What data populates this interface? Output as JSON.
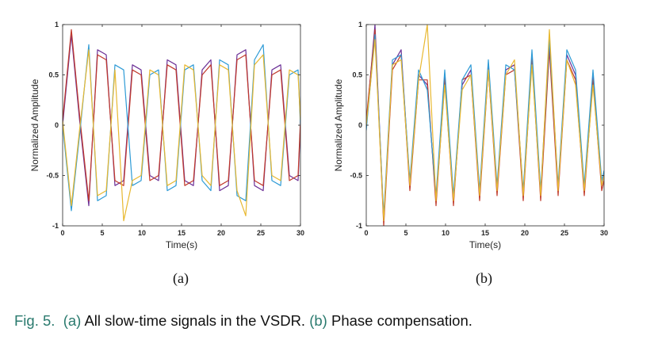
{
  "chart_data": [
    {
      "type": "line",
      "panel_label": "(a)",
      "title": "",
      "xlabel": "Time(s)",
      "ylabel": "Normalized Amplitude",
      "xlim": [
        0,
        30
      ],
      "ylim": [
        -1,
        1
      ],
      "xticks": [
        "0",
        "5",
        "10",
        "15",
        "20",
        "25",
        "30"
      ],
      "yticks": [
        "-1",
        "-0.5",
        "0",
        "0.5",
        "1"
      ],
      "grid": false,
      "legend": "none",
      "series": [
        {
          "color": "#6b2f96",
          "x": [
            0,
            1.1,
            2.2,
            3.3,
            4.4,
            5.5,
            6.6,
            7.7,
            8.8,
            9.9,
            11.0,
            12.1,
            13.2,
            14.3,
            15.4,
            16.5,
            17.6,
            18.7,
            19.8,
            20.9,
            22.0,
            23.1,
            24.2,
            25.3,
            26.4,
            27.5,
            28.6,
            29.7,
            30
          ],
          "y": [
            0.0,
            0.9,
            0.0,
            -0.8,
            0.75,
            0.7,
            -0.6,
            -0.55,
            0.6,
            0.55,
            -0.5,
            -0.55,
            0.65,
            0.6,
            -0.55,
            -0.6,
            0.55,
            0.65,
            -0.65,
            -0.6,
            0.7,
            0.75,
            -0.6,
            -0.65,
            0.55,
            0.6,
            -0.5,
            -0.55,
            0.0
          ]
        },
        {
          "color": "#c0392b",
          "x": [
            0,
            1.1,
            2.2,
            3.3,
            4.4,
            5.5,
            6.6,
            7.7,
            8.8,
            9.9,
            11.0,
            12.1,
            13.2,
            14.3,
            15.4,
            16.5,
            17.6,
            18.7,
            19.8,
            20.9,
            22.0,
            23.1,
            24.2,
            25.3,
            26.4,
            27.5,
            28.6,
            29.7,
            30
          ],
          "y": [
            0.05,
            0.95,
            0.05,
            -0.75,
            0.7,
            0.65,
            -0.55,
            -0.6,
            0.55,
            0.5,
            -0.55,
            -0.5,
            0.6,
            0.55,
            -0.6,
            -0.55,
            0.5,
            0.6,
            -0.6,
            -0.55,
            0.65,
            0.7,
            -0.55,
            -0.6,
            0.5,
            0.55,
            -0.55,
            -0.5,
            0.05
          ]
        },
        {
          "color": "#2e9bd6",
          "x": [
            0,
            1.1,
            2.2,
            3.3,
            4.4,
            5.5,
            6.6,
            7.7,
            8.8,
            9.9,
            11.0,
            12.1,
            13.2,
            14.3,
            15.4,
            16.5,
            17.6,
            18.7,
            19.8,
            20.9,
            22.0,
            23.1,
            24.2,
            25.3,
            26.4,
            27.5,
            28.6,
            29.7,
            30
          ],
          "y": [
            0.0,
            -0.85,
            -0.05,
            0.8,
            -0.75,
            -0.7,
            0.6,
            0.55,
            -0.6,
            -0.55,
            0.5,
            0.55,
            -0.65,
            -0.6,
            0.55,
            0.6,
            -0.55,
            -0.65,
            0.65,
            0.6,
            -0.7,
            -0.75,
            0.65,
            0.8,
            -0.55,
            -0.6,
            0.5,
            0.55,
            0.0
          ]
        },
        {
          "color": "#e8b830",
          "x": [
            0,
            1.1,
            2.2,
            3.3,
            4.4,
            5.5,
            6.6,
            7.7,
            8.8,
            9.9,
            11.0,
            12.1,
            13.2,
            14.3,
            15.4,
            16.5,
            17.6,
            18.7,
            19.8,
            20.9,
            22.0,
            23.1,
            24.2,
            25.3,
            26.4,
            27.5,
            28.6,
            29.7,
            30
          ],
          "y": [
            0.05,
            -0.8,
            0.0,
            0.75,
            -0.7,
            -0.65,
            0.55,
            -0.95,
            -0.55,
            -0.5,
            0.55,
            0.5,
            -0.6,
            -0.55,
            0.6,
            0.55,
            -0.5,
            -0.6,
            0.6,
            0.55,
            -0.65,
            -0.9,
            0.6,
            0.7,
            -0.5,
            -0.55,
            0.55,
            0.5,
            0.05
          ]
        }
      ]
    },
    {
      "type": "line",
      "panel_label": "(b)",
      "title": "",
      "xlabel": "Time(s)",
      "ylabel": "Normalized Amplitude",
      "xlim": [
        0,
        30
      ],
      "ylim": [
        -1,
        1
      ],
      "xticks": [
        "0",
        "5",
        "10",
        "15",
        "20",
        "25",
        "30"
      ],
      "yticks": [
        "-1",
        "-0.5",
        "0",
        "0.5",
        "1"
      ],
      "grid": false,
      "legend": "none",
      "series": [
        {
          "color": "#6b2f96",
          "x": [
            0,
            1.1,
            2.2,
            3.3,
            4.4,
            5.5,
            6.6,
            7.7,
            8.8,
            9.9,
            11.0,
            12.1,
            13.2,
            14.3,
            15.4,
            16.5,
            17.6,
            18.7,
            19.8,
            20.9,
            22.0,
            23.1,
            24.2,
            25.3,
            26.4,
            27.5,
            28.6,
            29.7,
            30
          ],
          "y": [
            0.0,
            1.0,
            -0.95,
            0.6,
            0.75,
            -0.6,
            0.5,
            0.4,
            -0.75,
            0.5,
            -0.75,
            0.4,
            0.55,
            -0.7,
            0.6,
            -0.65,
            0.55,
            0.6,
            -0.7,
            0.7,
            -0.7,
            0.8,
            -0.65,
            0.7,
            0.5,
            -0.65,
            0.5,
            -0.6,
            -0.5
          ]
        },
        {
          "color": "#c0392b",
          "x": [
            0,
            1.1,
            2.2,
            3.3,
            4.4,
            5.5,
            6.6,
            7.7,
            8.8,
            9.9,
            11.0,
            12.1,
            13.2,
            14.3,
            15.4,
            16.5,
            17.6,
            18.7,
            19.8,
            20.9,
            22.0,
            23.1,
            24.2,
            25.3,
            26.4,
            27.5,
            28.6,
            29.7,
            30
          ],
          "y": [
            0.05,
            0.95,
            -1.0,
            0.55,
            0.7,
            -0.65,
            0.45,
            0.45,
            -0.8,
            0.45,
            -0.8,
            0.45,
            0.5,
            -0.75,
            0.55,
            -0.7,
            0.5,
            0.55,
            -0.75,
            0.65,
            -0.75,
            0.75,
            -0.7,
            0.65,
            0.45,
            -0.7,
            0.45,
            -0.65,
            -0.55
          ]
        },
        {
          "color": "#2e9bd6",
          "x": [
            0,
            1.1,
            2.2,
            3.3,
            4.4,
            5.5,
            6.6,
            7.7,
            8.8,
            9.9,
            11.0,
            12.1,
            13.2,
            14.3,
            15.4,
            16.5,
            17.6,
            18.7,
            19.8,
            20.9,
            22.0,
            23.1,
            24.2,
            25.3,
            26.4,
            27.5,
            28.6,
            29.7,
            30
          ],
          "y": [
            -0.05,
            0.9,
            -0.9,
            0.65,
            0.7,
            -0.55,
            0.55,
            0.35,
            -0.7,
            0.55,
            -0.7,
            0.45,
            0.6,
            -0.65,
            0.65,
            -0.6,
            0.6,
            0.55,
            -0.65,
            0.75,
            -0.65,
            0.85,
            -0.6,
            0.75,
            0.55,
            -0.6,
            0.55,
            -0.55,
            -0.45
          ]
        },
        {
          "color": "#e8b830",
          "x": [
            0,
            1.1,
            2.2,
            3.3,
            4.4,
            5.5,
            6.6,
            7.7,
            8.8,
            9.9,
            11.0,
            12.1,
            13.2,
            14.3,
            15.4,
            16.5,
            17.6,
            18.7,
            19.8,
            20.9,
            22.0,
            23.1,
            24.2,
            25.3,
            26.4,
            27.5,
            28.6,
            29.7,
            30
          ],
          "y": [
            0.0,
            0.85,
            -0.95,
            0.6,
            0.65,
            -0.6,
            0.45,
            1.0,
            -0.75,
            0.4,
            -0.75,
            0.35,
            0.5,
            -0.7,
            0.55,
            -0.65,
            0.5,
            0.65,
            -0.7,
            0.6,
            -0.7,
            0.95,
            -0.65,
            0.65,
            0.4,
            -0.65,
            0.4,
            -0.6,
            -0.5
          ]
        }
      ]
    }
  ],
  "caption": {
    "fig_label": "Fig. 5.",
    "part_a_label": "(a)",
    "part_a_text": "All slow-time signals in the VSDR.",
    "part_b_label": "(b)",
    "part_b_text": "Phase compensation."
  }
}
